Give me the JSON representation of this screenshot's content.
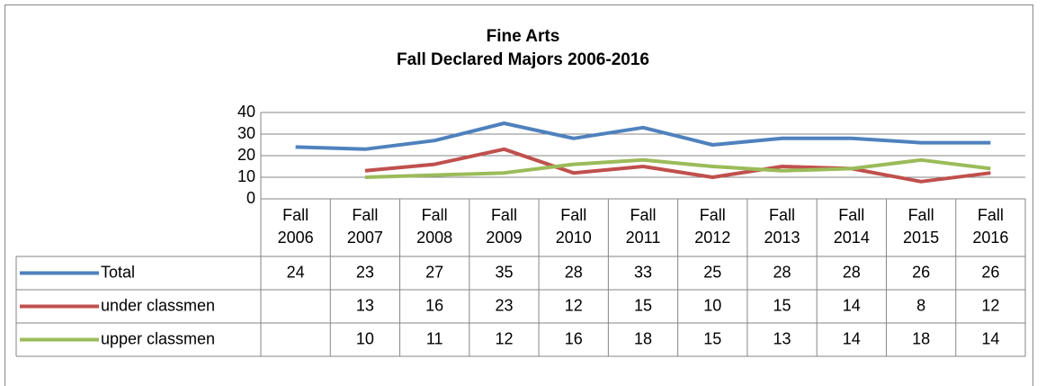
{
  "chart_data": {
    "type": "line",
    "title": "Fine Arts",
    "subtitle": "Fall Declared Majors 2006-2016",
    "categories": [
      "Fall 2006",
      "Fall 2007",
      "Fall 2008",
      "Fall 2009",
      "Fall 2010",
      "Fall 2011",
      "Fall 2012",
      "Fall 2013",
      "Fall 2014",
      "Fall 2015",
      "Fall 2016"
    ],
    "series": [
      {
        "name": "Total",
        "color": "#4f81bd",
        "values": [
          24,
          23,
          27,
          35,
          28,
          33,
          25,
          28,
          28,
          26,
          26
        ]
      },
      {
        "name": "under classmen",
        "color": "#c0504d",
        "values": [
          null,
          13,
          16,
          23,
          12,
          15,
          10,
          15,
          14,
          8,
          12
        ]
      },
      {
        "name": "upper classmen",
        "color": "#9bbb59",
        "values": [
          null,
          10,
          11,
          12,
          16,
          18,
          15,
          13,
          14,
          18,
          14
        ]
      }
    ],
    "ylim": [
      0,
      40
    ],
    "yticks": [
      0,
      10,
      20,
      30,
      40
    ],
    "grid": true,
    "data_table": true
  }
}
